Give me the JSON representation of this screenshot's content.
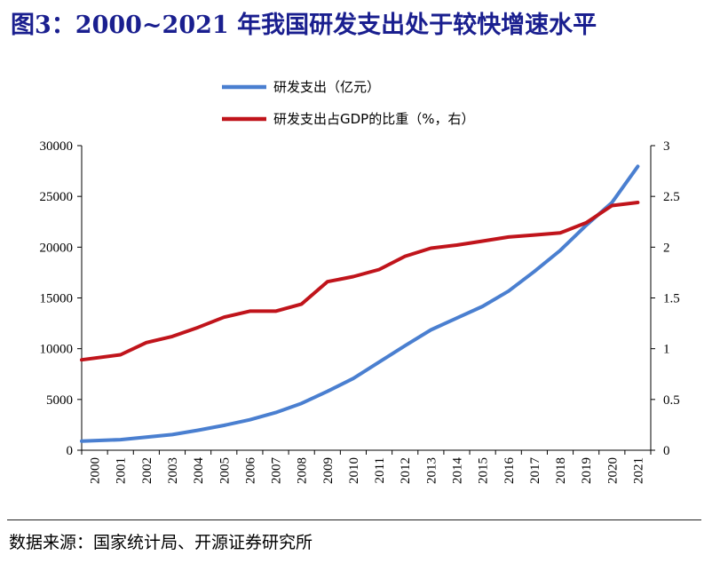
{
  "title": "图3：2000~2021 年我国研发支出处于较快增速水平",
  "source": "数据来源：国家统计局、开源证券研究所",
  "chart_data": {
    "type": "line",
    "x": [
      "2000",
      "2001",
      "2002",
      "2003",
      "2004",
      "2005",
      "2006",
      "2007",
      "2008",
      "2009",
      "2010",
      "2011",
      "2012",
      "2013",
      "2014",
      "2015",
      "2016",
      "2017",
      "2018",
      "2019",
      "2020",
      "2021"
    ],
    "y_left_ticks": [
      "0",
      "5000",
      "10000",
      "15000",
      "20000",
      "25000",
      "30000"
    ],
    "y_right_ticks": [
      "0",
      "0.5",
      "1",
      "1.5",
      "2",
      "2.5",
      "3"
    ],
    "ylim_left": [
      0,
      30000
    ],
    "ylim_right": [
      0,
      3
    ],
    "legend_position": "top-center",
    "series": [
      {
        "name": "研发支出（亿元）",
        "axis": "left",
        "color": "#4a7fd0",
        "values": [
          896,
          1043,
          1288,
          1540,
          1966,
          2450,
          3003,
          3710,
          4616,
          5802,
          7063,
          8687,
          10298,
          11847,
          13016,
          14170,
          15677,
          17606,
          19678,
          22144,
          24393,
          27956
        ]
      },
      {
        "name": "研发支出占GDP的比重（%，右）",
        "axis": "right",
        "color": "#c0141b",
        "values": [
          0.89,
          0.94,
          1.06,
          1.12,
          1.21,
          1.31,
          1.37,
          1.37,
          1.44,
          1.66,
          1.71,
          1.78,
          1.91,
          1.99,
          2.02,
          2.06,
          2.1,
          2.12,
          2.14,
          2.24,
          2.41,
          2.44
        ]
      }
    ]
  }
}
